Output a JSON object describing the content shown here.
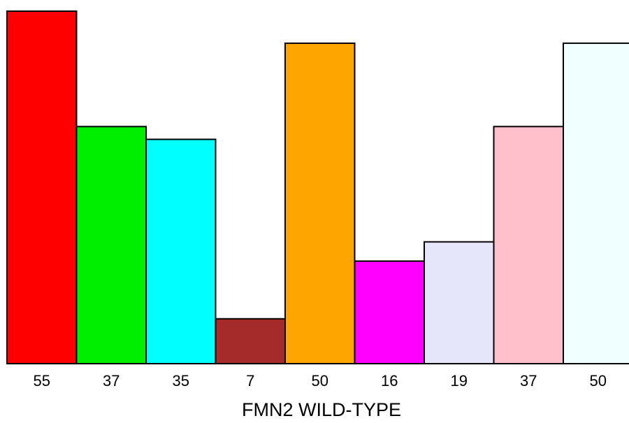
{
  "chart_data": {
    "type": "bar",
    "values": [
      55,
      37,
      35,
      7,
      50,
      16,
      19,
      37,
      50
    ],
    "colors": [
      "#ff0000",
      "#00ee00",
      "#00ffff",
      "#a52a2a",
      "#ffa500",
      "#ff00ff",
      "#e6e6fa",
      "#ffc0cb",
      "#f0ffff"
    ],
    "data_labels": [
      "55",
      "37",
      "35",
      "7",
      "50",
      "16",
      "19",
      "37",
      "50"
    ],
    "xlabel": "FMN2 WILD-TYPE",
    "ylim": [
      0,
      55
    ]
  }
}
